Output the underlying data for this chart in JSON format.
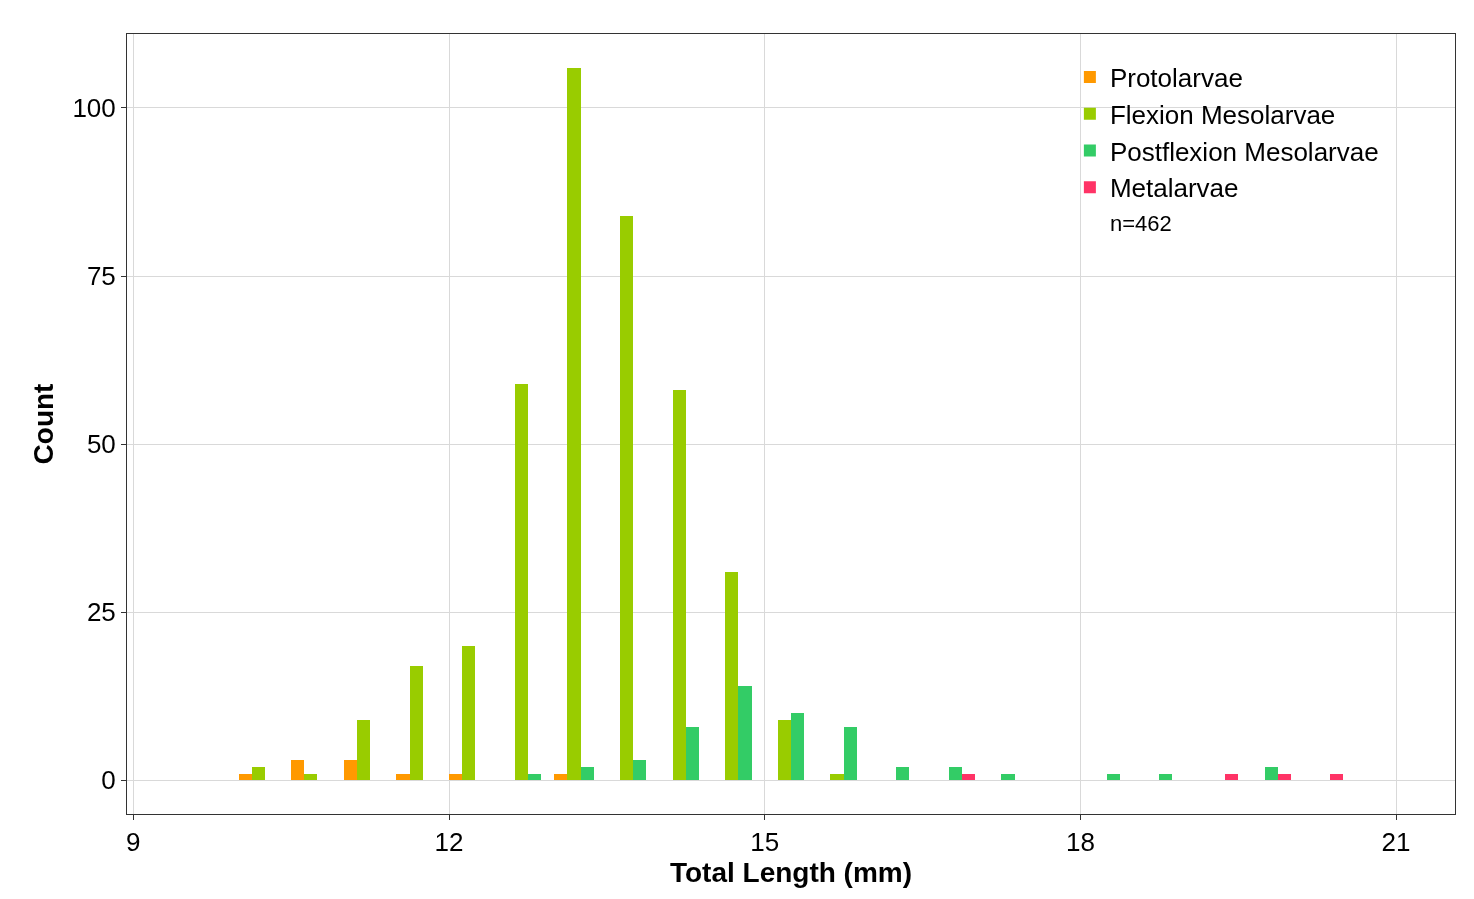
{
  "chart_data": {
    "type": "bar",
    "xlabel": "Total Length (mm)",
    "ylabel": "Count",
    "series": [
      {
        "name": "Protolarvae",
        "color": "#ff9900",
        "x": [
          10.0625,
          10.5625,
          11.0625,
          11.5625,
          12.0625,
          13.0625
        ],
        "values": [
          1,
          3,
          3,
          1,
          1,
          1
        ]
      },
      {
        "name": "Flexion Mesolarvae",
        "color": "#99cc00",
        "x": [
          10.1875,
          10.6875,
          11.1875,
          11.6875,
          12.1875,
          12.6875,
          13.1875,
          13.6875,
          14.1875,
          14.6875,
          15.1875,
          15.6875
        ],
        "values": [
          2,
          1,
          9,
          17,
          20,
          59,
          106,
          84,
          58,
          31,
          9,
          1
        ]
      },
      {
        "name": "Postflexion Mesolarvae",
        "color": "#33cc66",
        "x": [
          12.8125,
          13.3125,
          13.8125,
          14.3125,
          14.8125,
          15.3125,
          15.8125,
          16.3125,
          16.8125,
          17.3125,
          18.3125,
          18.8125,
          19.8125
        ],
        "values": [
          1,
          2,
          3,
          8,
          14,
          10,
          8,
          2,
          2,
          1,
          1,
          1,
          2
        ]
      },
      {
        "name": "Metalarvae",
        "color": "#ff3366",
        "x": [
          16.9375,
          19.4375,
          19.9375,
          20.4375
        ],
        "values": [
          1,
          1,
          1,
          1
        ]
      }
    ],
    "annotations": [
      "n=462"
    ],
    "xlim": [
      8.94,
      21.56
    ],
    "xticks": [
      9,
      12,
      15,
      18,
      21
    ],
    "ylim": [
      -5,
      111
    ],
    "yticks": [
      0,
      25,
      50,
      75,
      100
    ],
    "grid": true,
    "legend": "top right"
  }
}
